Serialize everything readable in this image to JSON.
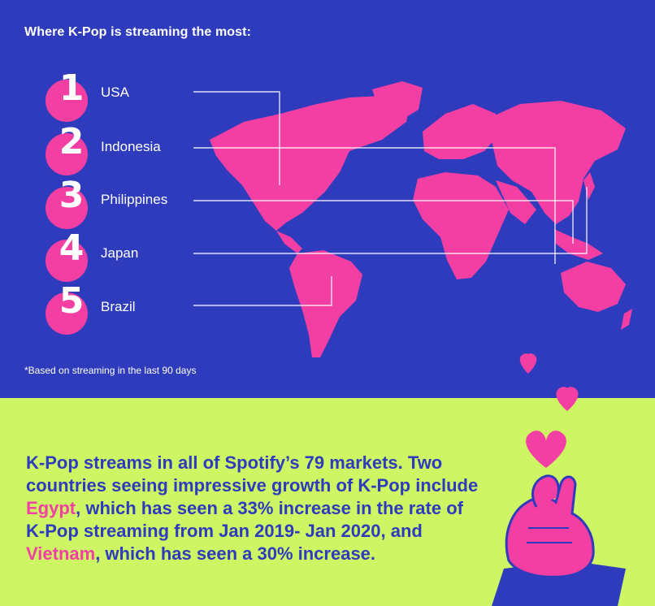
{
  "heading": "Where K-Pop is streaming the most:",
  "rankings": [
    {
      "rank": "1",
      "country": "USA"
    },
    {
      "rank": "2",
      "country": "Indonesia"
    },
    {
      "rank": "3",
      "country": "Philippines"
    },
    {
      "rank": "4",
      "country": "Japan"
    },
    {
      "rank": "5",
      "country": "Brazil"
    }
  ],
  "footnote": "*Based on streaming in the last 90 days",
  "paragraph": {
    "part1": "K-Pop streams in all of Spotify’s 79 markets. Two countries seeing impressive growth of K-Pop include ",
    "highlight1": "Egypt",
    "part2": ", which has seen a 33% increase in the rate of K-Pop streaming from Jan 2019- Jan 2020, and ",
    "highlight2": "Vietnam",
    "part3": ", which has seen a 30% increase."
  },
  "colors": {
    "top_bg": "#2f3bbd",
    "bottom_bg": "#cdf564",
    "accent_pink": "#f33fa3",
    "text_blue": "#2f3bbd"
  }
}
